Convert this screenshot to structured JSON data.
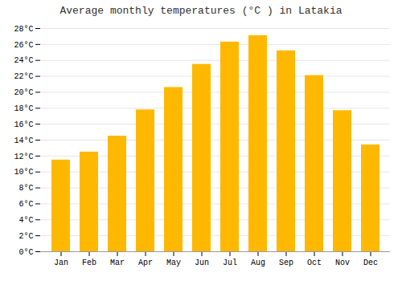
{
  "chart_data": {
    "type": "bar",
    "title": "Average monthly temperatures (°C ) in Latakia",
    "categories": [
      "Jan",
      "Feb",
      "Mar",
      "Apr",
      "May",
      "Jun",
      "Jul",
      "Aug",
      "Sep",
      "Oct",
      "Nov",
      "Dec"
    ],
    "values": [
      11.5,
      12.5,
      14.5,
      17.8,
      20.6,
      23.5,
      26.3,
      27.1,
      25.2,
      22.1,
      17.7,
      13.4
    ],
    "color": "#FFB800",
    "ylim": [
      0,
      28
    ],
    "yticks": [
      {
        "value": 0,
        "label": "0°C"
      },
      {
        "value": 2,
        "label": "2°C"
      },
      {
        "value": 4,
        "label": "4°C"
      },
      {
        "value": 6,
        "label": "6°C"
      },
      {
        "value": 8,
        "label": "8°C"
      },
      {
        "value": 10,
        "label": "10°C"
      },
      {
        "value": 12,
        "label": "12°C"
      },
      {
        "value": 14,
        "label": "14°C"
      },
      {
        "value": 16,
        "label": "16°C"
      },
      {
        "value": 18,
        "label": "18°C"
      },
      {
        "value": 20,
        "label": "20°C"
      },
      {
        "value": 22,
        "label": "22°C"
      },
      {
        "value": 24,
        "label": "24°C"
      },
      {
        "value": 26,
        "label": "26°C"
      },
      {
        "value": 28,
        "label": "28°C"
      }
    ],
    "grid": true
  }
}
